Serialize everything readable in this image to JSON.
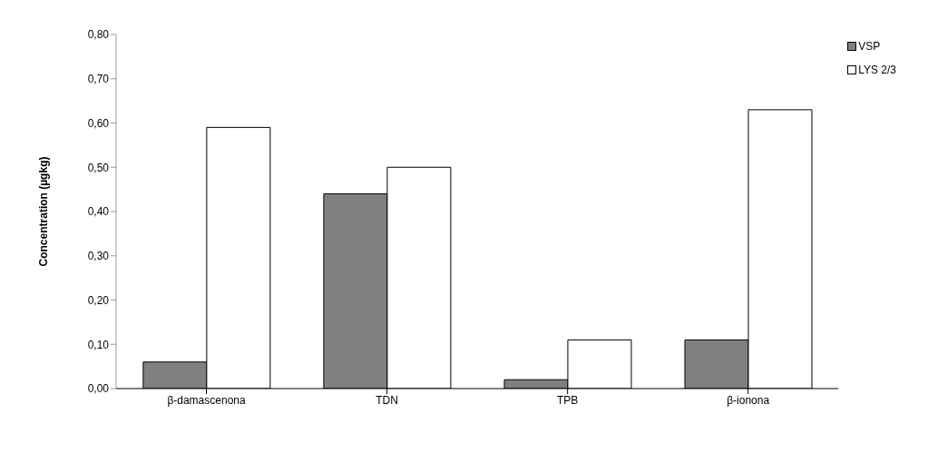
{
  "chart_data": {
    "type": "bar",
    "ylabel": "Concentration (µgkg)",
    "categories": [
      "β-damascenona",
      "TDN",
      "TPB",
      "β-ionona"
    ],
    "series": [
      {
        "name": "VSP",
        "color": "#808080",
        "values": [
          0.06,
          0.44,
          0.02,
          0.11
        ]
      },
      {
        "name": "LYS 2/3",
        "color": "#ffffff",
        "values": [
          0.59,
          0.5,
          0.11,
          0.63
        ]
      }
    ],
    "ylim": [
      0,
      0.8
    ],
    "yticks": [
      {
        "value": 0,
        "label": "0,00"
      },
      {
        "value": 0.1,
        "label": "0,10"
      },
      {
        "value": 0.2,
        "label": "0,20"
      },
      {
        "value": 0.3,
        "label": "0,30"
      },
      {
        "value": 0.4,
        "label": "0,40"
      },
      {
        "value": 0.5,
        "label": "0,50"
      },
      {
        "value": 0.6,
        "label": "0,60"
      },
      {
        "value": 0.7,
        "label": "0,70"
      },
      {
        "value": 0.8,
        "label": "0,80"
      }
    ],
    "grid": false,
    "legend": "top right"
  }
}
